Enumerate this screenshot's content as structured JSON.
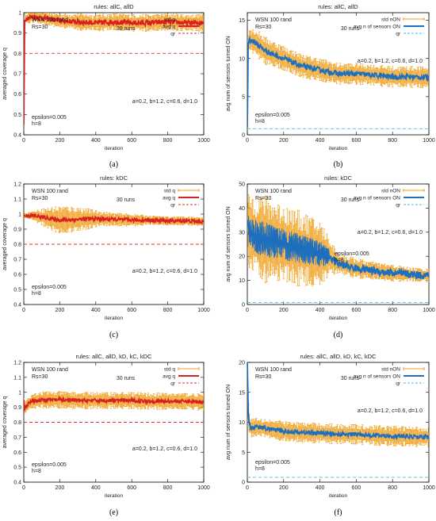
{
  "chart_data": [
    {
      "panel": "(a)",
      "type": "line",
      "title": "rules: allC, allD",
      "xlabel": "iteration",
      "ylabel": "averaged coverage q",
      "xlim": [
        0,
        1000
      ],
      "ylim": [
        0.4,
        1.0
      ],
      "xticks": [
        "0",
        "200",
        "400",
        "600",
        "800",
        "1000"
      ],
      "yticks": [
        "0.4",
        "0.5",
        "0.6",
        "0.7",
        "0.8",
        "0.9",
        "1"
      ],
      "annotations": {
        "header": "WSN 100 rand",
        "rs": "Rs=30",
        "runs": "30 runs",
        "params": "a=0.2, b=1.2, c=0.6, d=1.0",
        "epsilon": "epsilon=0.005",
        "h": "h=8"
      },
      "legend": [
        "std q",
        "avg q",
        "qr"
      ],
      "series": [
        {
          "name": "avg q",
          "x": [
            0,
            5,
            10,
            20,
            50,
            100,
            200,
            300,
            400,
            500,
            600,
            700,
            800,
            900,
            1000
          ],
          "values": [
            0.45,
            0.96,
            0.97,
            0.975,
            0.98,
            0.975,
            0.96,
            0.955,
            0.95,
            0.955,
            0.95,
            0.95,
            0.955,
            0.95,
            0.95
          ],
          "std": [
            0.0,
            0.02,
            0.02,
            0.02,
            0.02,
            0.02,
            0.025,
            0.03,
            0.03,
            0.03,
            0.03,
            0.03,
            0.03,
            0.03,
            0.03
          ]
        },
        {
          "name": "qr",
          "x": [
            0,
            1000
          ],
          "values": [
            0.8,
            0.8
          ]
        }
      ]
    },
    {
      "panel": "(b)",
      "type": "line",
      "title": "rules: allC, allD",
      "xlabel": "iteration",
      "ylabel": "avg num of sensors turned ON",
      "xlim": [
        0,
        1000
      ],
      "ylim": [
        0,
        16
      ],
      "xticks": [
        "0",
        "200",
        "400",
        "600",
        "800",
        "1000"
      ],
      "yticks": [
        "0",
        "5",
        "10",
        "15"
      ],
      "annotations": {
        "header": "WSN 100 rand",
        "rs": "Rs=30",
        "runs": "30 runs",
        "params": "a=0.2, b=1.2, c=0.6, d=1.0",
        "epsilon": "epsilon=0.005",
        "h": "h=8"
      },
      "legend": [
        "std nON",
        "avg n of sensors ON",
        "qr"
      ],
      "series": [
        {
          "name": "avg n of sensors ON",
          "x": [
            0,
            5,
            10,
            50,
            100,
            200,
            300,
            400,
            500,
            600,
            700,
            800,
            900,
            1000
          ],
          "values": [
            1,
            12,
            12.5,
            12,
            11,
            10,
            9,
            8.5,
            8,
            8,
            7.8,
            7.6,
            7.6,
            7.5
          ],
          "std": [
            0,
            1.2,
            1.2,
            1.3,
            1.3,
            1.2,
            1.1,
            1.1,
            1.0,
            1.0,
            1.0,
            1.0,
            1.0,
            1.0
          ]
        },
        {
          "name": "qr",
          "x": [
            0,
            1000
          ],
          "values": [
            0.8,
            0.8
          ]
        }
      ]
    },
    {
      "panel": "(c)",
      "type": "line",
      "title": "rules: kDC",
      "xlabel": "iteration",
      "ylabel": "averaged coverage q",
      "xlim": [
        0,
        1000
      ],
      "ylim": [
        0.4,
        1.2
      ],
      "xticks": [
        "0",
        "200",
        "400",
        "600",
        "800",
        "1000"
      ],
      "yticks": [
        "0.4",
        "0.5",
        "0.6",
        "0.7",
        "0.8",
        "0.9",
        "1",
        "1.1",
        "1.2"
      ],
      "annotations": {
        "header": "WSN 100 rand",
        "rs": "Rs=30",
        "runs": "30 runs",
        "params": "a=0.2, b=1.2, c=0.6, d=1.0",
        "epsilon": "epsilon=0.005",
        "h": "h=8"
      },
      "legend": [
        "std q",
        "avg q",
        "qr"
      ],
      "series": [
        {
          "name": "avg q",
          "x": [
            0,
            50,
            100,
            200,
            300,
            400,
            500,
            600,
            700,
            800,
            900,
            1000
          ],
          "values": [
            0.99,
            0.99,
            0.98,
            0.96,
            0.965,
            0.97,
            0.965,
            0.96,
            0.96,
            0.955,
            0.955,
            0.95
          ],
          "std": [
            0.01,
            0.02,
            0.04,
            0.07,
            0.06,
            0.04,
            0.03,
            0.03,
            0.02,
            0.02,
            0.02,
            0.02
          ]
        },
        {
          "name": "qr",
          "x": [
            0,
            1000
          ],
          "values": [
            0.8,
            0.8
          ]
        }
      ]
    },
    {
      "panel": "(d)",
      "type": "line",
      "title": "rules: kDC",
      "xlabel": "iteration",
      "ylabel": "avg num of sensors turned ON",
      "xlim": [
        0,
        1000
      ],
      "ylim": [
        0,
        50
      ],
      "xticks": [
        "0",
        "200",
        "400",
        "600",
        "800",
        "1000"
      ],
      "yticks": [
        "0",
        "10",
        "20",
        "30",
        "40",
        "50"
      ],
      "annotations": {
        "header": "WSN 100 rand",
        "rs": "Rs=30",
        "runs": "30 runs",
        "params": "a=0.2, b=1.2, c=0.6, d=1.0",
        "epsilon": "epsilon=0.005",
        "h": "h=8"
      },
      "legend": [
        "std nON",
        "avg n of sensors ON",
        "qr"
      ],
      "series": [
        {
          "name": "avg n of sensors ON",
          "x": [
            0,
            10,
            50,
            100,
            200,
            300,
            400,
            450,
            500,
            600,
            700,
            800,
            900,
            1000
          ],
          "values": [
            35,
            30,
            28,
            27,
            25,
            23,
            21,
            20,
            17,
            15,
            14,
            13,
            12.5,
            12
          ],
          "std": [
            5,
            12,
            13,
            13,
            12,
            11,
            10,
            6,
            3,
            3,
            2.5,
            2.5,
            2,
            2
          ]
        },
        {
          "name": "qr",
          "x": [
            0,
            1000
          ],
          "values": [
            0.8,
            0.8
          ]
        }
      ]
    },
    {
      "panel": "(e)",
      "type": "line",
      "title": "rules: allC, allD, kD, kC, kDC",
      "xlabel": "iteration",
      "ylabel": "averaged coverage q",
      "xlim": [
        0,
        1000
      ],
      "ylim": [
        0.4,
        1.2
      ],
      "xticks": [
        "0",
        "200",
        "400",
        "600",
        "800",
        "1000"
      ],
      "yticks": [
        "0.4",
        "0.5",
        "0.6",
        "0.7",
        "0.8",
        "0.9",
        "1",
        "1.1",
        "1.2"
      ],
      "annotations": {
        "header": "WSN 100 rand",
        "rs": "Rs=30",
        "runs": "30 runs",
        "params": "a=0.2, b=1.2, c=0.6, d=1.0",
        "epsilon": "epsilon=0.005",
        "h": "h=8"
      },
      "legend": [
        "std q",
        "avg q",
        "qr"
      ],
      "series": [
        {
          "name": "avg q",
          "x": [
            0,
            5,
            10,
            20,
            50,
            100,
            200,
            300,
            400,
            500,
            600,
            700,
            800,
            900,
            1000
          ],
          "values": [
            0.95,
            0.88,
            0.9,
            0.92,
            0.94,
            0.95,
            0.95,
            0.945,
            0.945,
            0.945,
            0.945,
            0.94,
            0.94,
            0.94,
            0.935
          ],
          "std": [
            0.01,
            0.03,
            0.03,
            0.04,
            0.04,
            0.04,
            0.04,
            0.04,
            0.04,
            0.04,
            0.04,
            0.04,
            0.04,
            0.04,
            0.04
          ]
        },
        {
          "name": "qr",
          "x": [
            0,
            1000
          ],
          "values": [
            0.8,
            0.8
          ]
        }
      ]
    },
    {
      "panel": "(f)",
      "type": "line",
      "title": "rules: allC, allD, kD, kC, kDC",
      "xlabel": "iteration",
      "ylabel": "avg num of sensors turned ON",
      "xlim": [
        0,
        1000
      ],
      "ylim": [
        0,
        20
      ],
      "xticks": [
        "0",
        "200",
        "400",
        "600",
        "800",
        "1000"
      ],
      "yticks": [
        "0",
        "5",
        "10",
        "15",
        "20"
      ],
      "annotations": {
        "header": "WSN 100 rand",
        "rs": "Rs=30",
        "runs": "30 runs",
        "params": "a=0.2, b=1.2, c=0.6, d=1.0",
        "epsilon": "epsilon=0.005",
        "h": "h=8"
      },
      "legend": [
        "std nON",
        "avg n of sensors ON",
        "qr"
      ],
      "series": [
        {
          "name": "avg n of sensors ON",
          "x": [
            0,
            5,
            10,
            20,
            50,
            100,
            200,
            300,
            400,
            500,
            600,
            700,
            800,
            900,
            1000
          ],
          "values": [
            20,
            12,
            10,
            9,
            9.2,
            9,
            8.5,
            8.3,
            8.2,
            8.0,
            8.0,
            7.8,
            7.7,
            7.6,
            7.5
          ],
          "std": [
            0,
            2,
            1.5,
            1.2,
            1.2,
            1.2,
            1.2,
            1.2,
            1.2,
            1.2,
            1.2,
            1.2,
            1.2,
            1.2,
            1.2
          ]
        },
        {
          "name": "qr",
          "x": [
            0,
            1000
          ],
          "values": [
            0.8,
            0.8
          ]
        }
      ]
    }
  ],
  "colors": {
    "std": "#f0a01e",
    "avg_a": "#d92020",
    "avg_b": "#1f6fbf",
    "qr_red": "#e03030",
    "qr_cyan": "#40c0e0"
  }
}
